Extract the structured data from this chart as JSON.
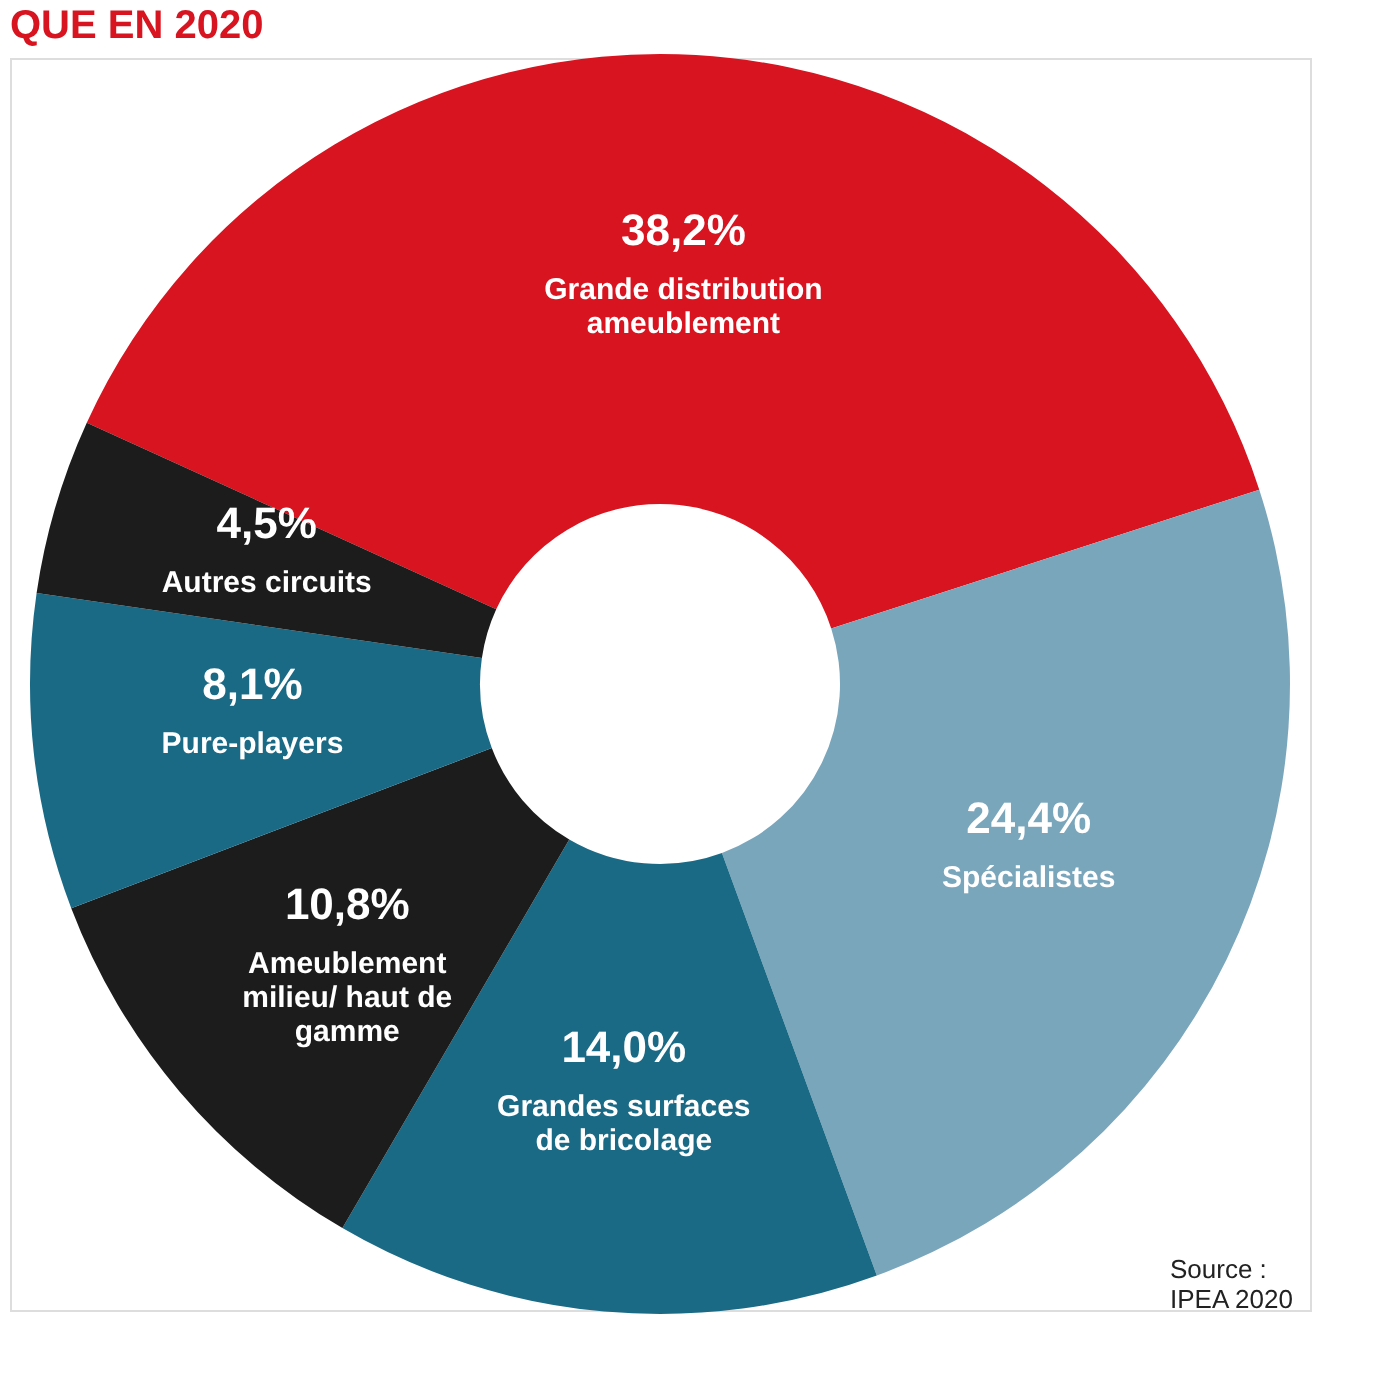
{
  "chart_data": {
    "type": "donut",
    "title": "QUE EN 2020",
    "categories": [
      "Grande distribution\nameublement",
      "Spécialistes",
      "Grandes surfaces\nde bricolage",
      "Ameublement\nmilieu/ haut de\ngamme",
      "Pure-players",
      "Autres circuits"
    ],
    "values": [
      38.2,
      24.4,
      14.0,
      10.8,
      8.1,
      4.5
    ],
    "value_labels": [
      "38,2%",
      "24,4%",
      "14,0%",
      "10,8%",
      "8,1%",
      "4,5%"
    ],
    "colors": [
      "#d7141f",
      "#7aa6bc",
      "#1a6a86",
      "#1c1c1c",
      "#1a6a86",
      "#1c1c1c"
    ],
    "annotations": [
      "Source :\nIPEA 2020"
    ],
    "legend": false
  }
}
